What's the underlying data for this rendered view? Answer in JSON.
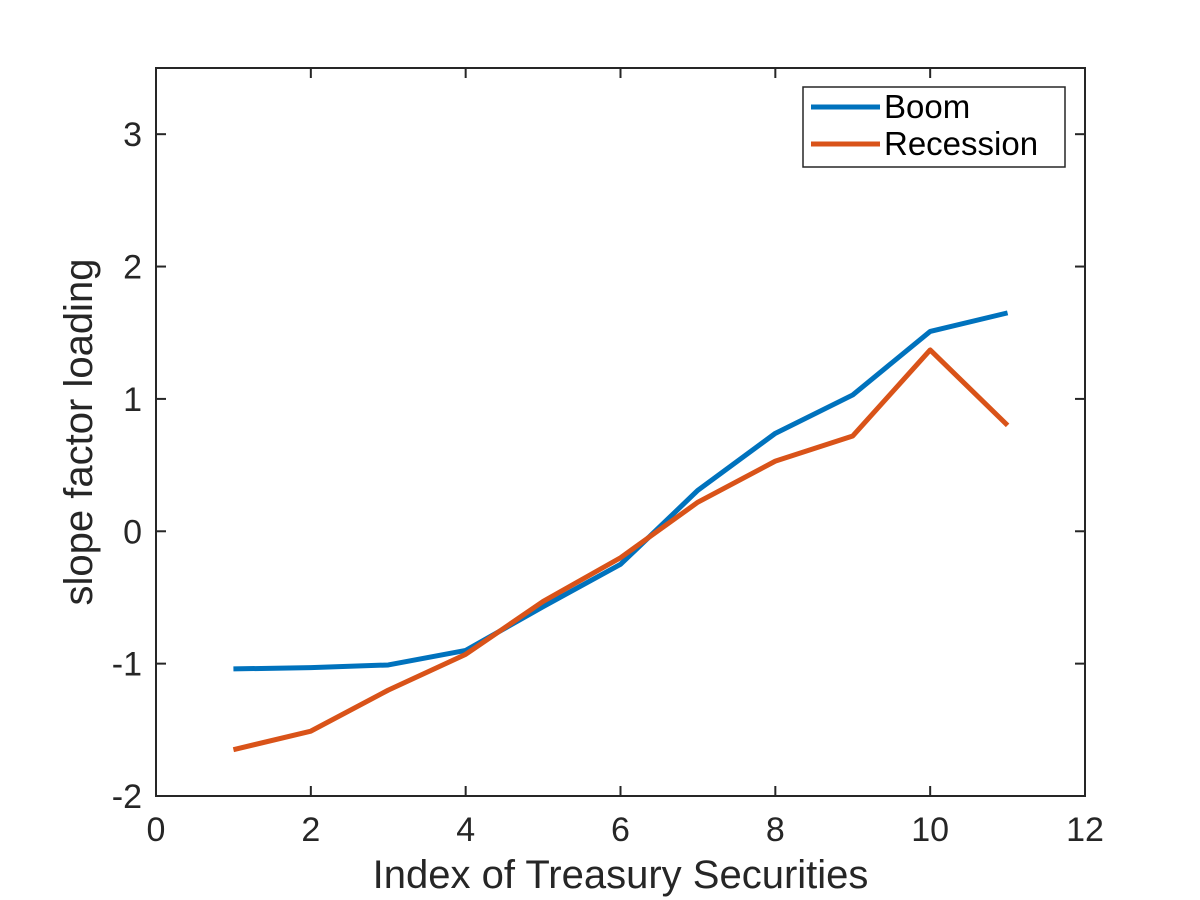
{
  "chart_data": {
    "type": "line",
    "title": "",
    "xlabel": "Index of Treasury Securities",
    "ylabel": "slope factor loading",
    "xlim": [
      0,
      12
    ],
    "ylim": [
      -2,
      3.5
    ],
    "xticks": [
      "0",
      "2",
      "4",
      "6",
      "8",
      "10",
      "12"
    ],
    "yticks": [
      "-2",
      "-1",
      "0",
      "1",
      "2",
      "3"
    ],
    "grid": false,
    "legend_position": "top-right",
    "x": [
      1,
      2,
      3,
      4,
      5,
      6,
      7,
      8,
      9,
      10,
      11
    ],
    "series": [
      {
        "name": "Boom",
        "color": "#0072BD",
        "values": [
          -1.04,
          -1.03,
          -1.01,
          -0.9,
          -0.57,
          -0.25,
          0.31,
          0.74,
          1.03,
          1.51,
          1.65
        ]
      },
      {
        "name": "Recession",
        "color": "#D95319",
        "values": [
          -1.65,
          -1.51,
          -1.2,
          -0.93,
          -0.53,
          -0.2,
          0.22,
          0.53,
          0.72,
          1.37,
          0.8
        ]
      }
    ]
  }
}
